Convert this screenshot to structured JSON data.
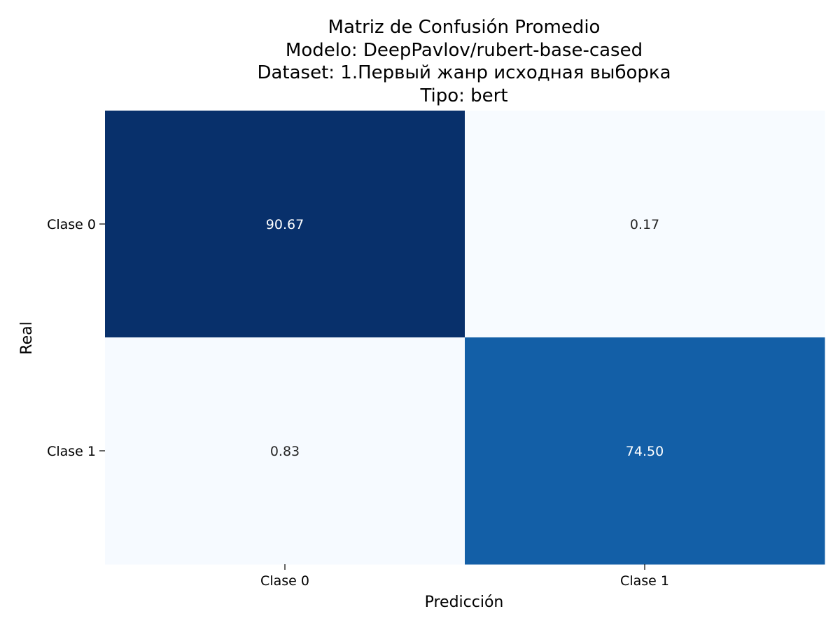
{
  "chart_data": {
    "type": "heatmap",
    "title_lines": [
      "Matriz de Confusión Promedio",
      "Modelo: DeepPavlov/rubert-base-cased",
      "Dataset: 1.Первый жанр исходная выборка",
      "Tipo: bert"
    ],
    "xlabel": "Predicción",
    "ylabel": "Real",
    "x_categories": [
      "Clase 0",
      "Clase 1"
    ],
    "y_categories": [
      "Clase 0",
      "Clase 1"
    ],
    "values": [
      [
        90.67,
        0.17
      ],
      [
        0.83,
        74.5
      ]
    ],
    "value_labels": [
      [
        "90.67",
        "0.17"
      ],
      [
        "0.83",
        "74.50"
      ]
    ],
    "colormap": "Blues",
    "color_low": "#f7fbff",
    "color_high": "#08306b",
    "colorbar": false,
    "grid": false
  }
}
